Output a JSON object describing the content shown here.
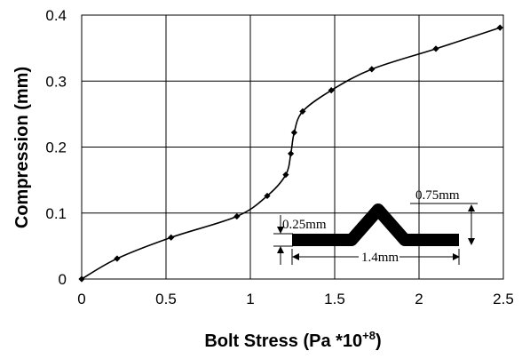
{
  "chart_data": {
    "type": "line",
    "title": "",
    "xlabel": "Bolt Stress (Pa *10",
    "xlabel_sup": "+8",
    "xlabel_close": ")",
    "ylabel": "Compression (mm)",
    "xlim": [
      0,
      2.5
    ],
    "ylim": [
      0,
      0.4
    ],
    "x_ticks": [
      "0",
      "0.5",
      "1",
      "1.5",
      "2",
      "2.5"
    ],
    "y_ticks": [
      "0",
      "0.1",
      "0.2",
      "0.3",
      "0.4"
    ],
    "grid": true,
    "legend": "none",
    "series": [
      {
        "points": [
          [
            0,
            0
          ],
          [
            0.21,
            0.031
          ],
          [
            0.53,
            0.063
          ],
          [
            0.92,
            0.095
          ],
          [
            1.1,
            0.126
          ],
          [
            1.21,
            0.158
          ],
          [
            1.24,
            0.19
          ],
          [
            1.26,
            0.222
          ],
          [
            1.31,
            0.254
          ],
          [
            1.48,
            0.286
          ],
          [
            1.72,
            0.318
          ],
          [
            2.1,
            0.349
          ],
          [
            2.48,
            0.381
          ]
        ]
      }
    ],
    "inset": {
      "dim_height": "0.75mm",
      "dim_thickness": "0.25mm",
      "dim_width": "1.4mm"
    }
  }
}
